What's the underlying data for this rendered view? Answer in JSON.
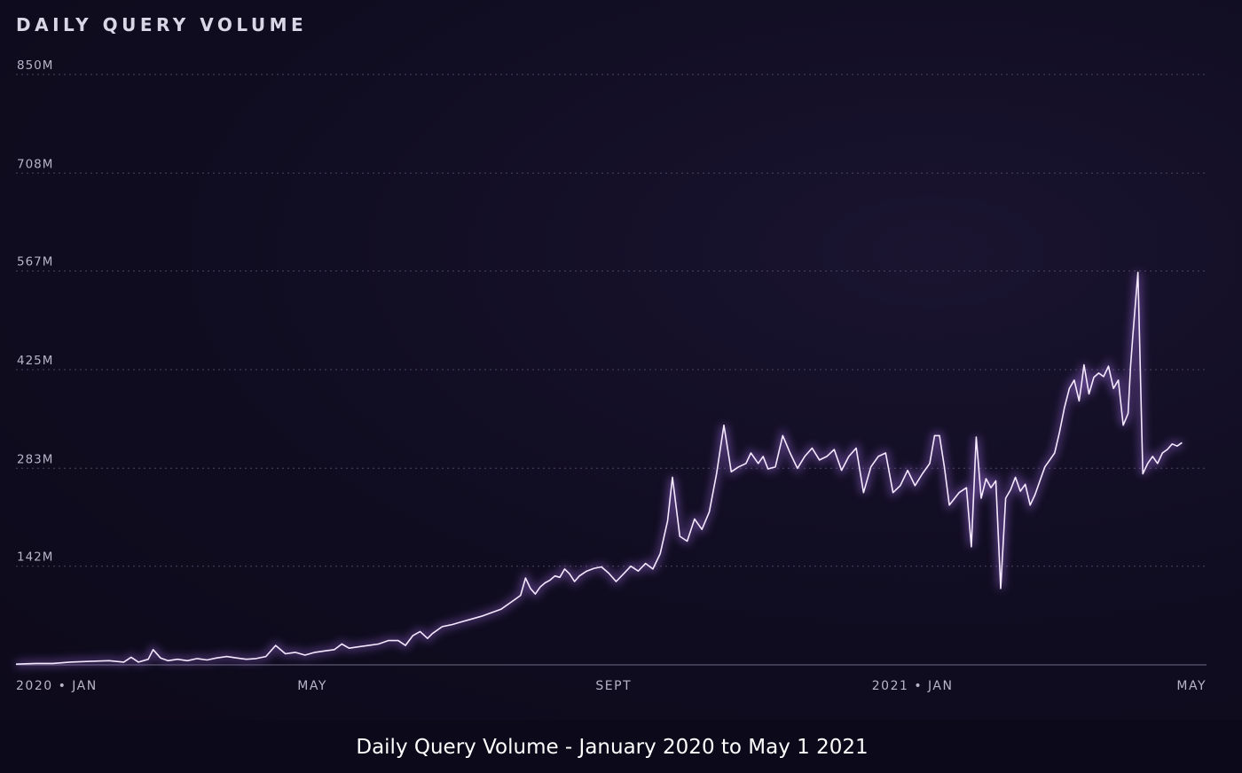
{
  "chart_data": {
    "type": "line",
    "title": "DAILY QUERY VOLUME",
    "caption": "Daily Query Volume - January 2020 to May 1 2021",
    "xlabel": "",
    "ylabel": "",
    "ylim": [
      0,
      850
    ],
    "y_unit": "M",
    "grid": "horizontal-dotted",
    "y_ticks": [
      {
        "value": 142,
        "label": "142M"
      },
      {
        "value": 283,
        "label": "283M"
      },
      {
        "value": 425,
        "label": "425M"
      },
      {
        "value": 567,
        "label": "567M"
      },
      {
        "value": 708,
        "label": "708M"
      },
      {
        "value": 850,
        "label": "850M"
      }
    ],
    "xlim": [
      0,
      486
    ],
    "x_unit": "days since 2020-01-01",
    "x_ticks": [
      {
        "value": 0,
        "label": "2020 • JAN",
        "anchor": "start"
      },
      {
        "value": 121,
        "label": "MAY",
        "anchor": "middle"
      },
      {
        "value": 244,
        "label": "SEPT",
        "anchor": "middle"
      },
      {
        "value": 366,
        "label": "2021 • JAN",
        "anchor": "middle"
      },
      {
        "value": 486,
        "label": "MAY",
        "anchor": "end"
      }
    ],
    "series": [
      {
        "name": "Daily Query Volume",
        "color": "#f4e9ff",
        "glow": "#9b6bdc",
        "points": [
          [
            0,
            1
          ],
          [
            8,
            2
          ],
          [
            15,
            2
          ],
          [
            22,
            4
          ],
          [
            30,
            5
          ],
          [
            38,
            6
          ],
          [
            44,
            4
          ],
          [
            47,
            11
          ],
          [
            50,
            4
          ],
          [
            54,
            8
          ],
          [
            56,
            22
          ],
          [
            59,
            10
          ],
          [
            62,
            6
          ],
          [
            66,
            8
          ],
          [
            70,
            6
          ],
          [
            74,
            9
          ],
          [
            78,
            7
          ],
          [
            82,
            10
          ],
          [
            86,
            12
          ],
          [
            90,
            10
          ],
          [
            94,
            8
          ],
          [
            98,
            9
          ],
          [
            102,
            12
          ],
          [
            106,
            28
          ],
          [
            110,
            16
          ],
          [
            114,
            18
          ],
          [
            118,
            14
          ],
          [
            122,
            18
          ],
          [
            126,
            20
          ],
          [
            130,
            22
          ],
          [
            133,
            30
          ],
          [
            136,
            24
          ],
          [
            140,
            26
          ],
          [
            144,
            28
          ],
          [
            148,
            30
          ],
          [
            152,
            35
          ],
          [
            156,
            35
          ],
          [
            159,
            28
          ],
          [
            162,
            42
          ],
          [
            165,
            48
          ],
          [
            168,
            38
          ],
          [
            170,
            45
          ],
          [
            174,
            55
          ],
          [
            178,
            58
          ],
          [
            182,
            62
          ],
          [
            186,
            66
          ],
          [
            190,
            70
          ],
          [
            194,
            75
          ],
          [
            198,
            80
          ],
          [
            202,
            90
          ],
          [
            204,
            95
          ],
          [
            206,
            100
          ],
          [
            208,
            125
          ],
          [
            210,
            110
          ],
          [
            212,
            102
          ],
          [
            214,
            112
          ],
          [
            216,
            118
          ],
          [
            218,
            122
          ],
          [
            220,
            128
          ],
          [
            222,
            126
          ],
          [
            224,
            138
          ],
          [
            226,
            131
          ],
          [
            228,
            120
          ],
          [
            230,
            128
          ],
          [
            233,
            135
          ],
          [
            236,
            139
          ],
          [
            239,
            141
          ],
          [
            242,
            132
          ],
          [
            245,
            120
          ],
          [
            248,
            131
          ],
          [
            251,
            142
          ],
          [
            254,
            135
          ],
          [
            257,
            146
          ],
          [
            260,
            138
          ],
          [
            263,
            160
          ],
          [
            266,
            207
          ],
          [
            268,
            270
          ],
          [
            271,
            185
          ],
          [
            274,
            178
          ],
          [
            277,
            210
          ],
          [
            280,
            195
          ],
          [
            283,
            220
          ],
          [
            286,
            275
          ],
          [
            289,
            345
          ],
          [
            292,
            278
          ],
          [
            295,
            285
          ],
          [
            298,
            290
          ],
          [
            300,
            305
          ],
          [
            303,
            290
          ],
          [
            305,
            300
          ],
          [
            307,
            282
          ],
          [
            310,
            285
          ],
          [
            313,
            330
          ],
          [
            316,
            305
          ],
          [
            319,
            283
          ],
          [
            322,
            300
          ],
          [
            325,
            312
          ],
          [
            328,
            295
          ],
          [
            331,
            300
          ],
          [
            334,
            310
          ],
          [
            337,
            280
          ],
          [
            340,
            300
          ],
          [
            343,
            312
          ],
          [
            346,
            248
          ],
          [
            349,
            285
          ],
          [
            352,
            300
          ],
          [
            355,
            305
          ],
          [
            358,
            248
          ],
          [
            361,
            258
          ],
          [
            364,
            280
          ],
          [
            367,
            258
          ],
          [
            370,
            275
          ],
          [
            373,
            290
          ],
          [
            375,
            330
          ],
          [
            377,
            330
          ],
          [
            379,
            285
          ],
          [
            381,
            230
          ],
          [
            385,
            248
          ],
          [
            388,
            255
          ],
          [
            390,
            170
          ],
          [
            392,
            328
          ],
          [
            394,
            240
          ],
          [
            396,
            268
          ],
          [
            398,
            255
          ],
          [
            400,
            265
          ],
          [
            402,
            110
          ],
          [
            404,
            240
          ],
          [
            406,
            252
          ],
          [
            408,
            270
          ],
          [
            410,
            250
          ],
          [
            412,
            260
          ],
          [
            414,
            230
          ],
          [
            416,
            245
          ],
          [
            418,
            265
          ],
          [
            420,
            285
          ],
          [
            422,
            295
          ],
          [
            424,
            305
          ],
          [
            426,
            335
          ],
          [
            428,
            370
          ],
          [
            430,
            398
          ],
          [
            432,
            410
          ],
          [
            434,
            380
          ],
          [
            435,
            405
          ],
          [
            436,
            432
          ],
          [
            438,
            390
          ],
          [
            440,
            414
          ],
          [
            442,
            420
          ],
          [
            444,
            415
          ],
          [
            446,
            430
          ],
          [
            448,
            398
          ],
          [
            450,
            410
          ],
          [
            452,
            345
          ],
          [
            454,
            362
          ],
          [
            455,
            430
          ],
          [
            456,
            478
          ],
          [
            458,
            565
          ],
          [
            460,
            275
          ],
          [
            462,
            290
          ],
          [
            464,
            300
          ],
          [
            466,
            290
          ],
          [
            468,
            305
          ],
          [
            470,
            310
          ],
          [
            472,
            318
          ],
          [
            474,
            315
          ],
          [
            476,
            320
          ]
        ]
      }
    ]
  }
}
